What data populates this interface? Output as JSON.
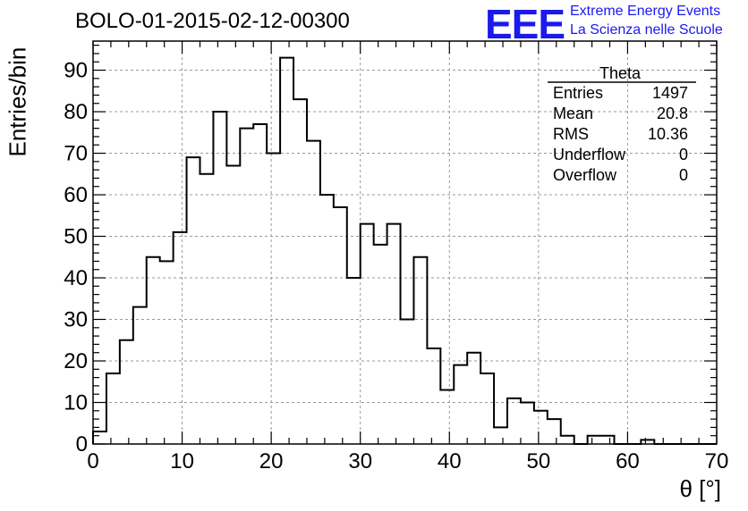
{
  "title": "BOLO-01-2015-02-12-00300",
  "logo": {
    "mark": "EEE",
    "line1": "Extreme Energy Events",
    "line2": "La Scienza nelle Scuole"
  },
  "colors": {
    "logo": "#1a1aee",
    "line": "#000000",
    "grid": "#999999"
  },
  "stats": {
    "name": "Theta",
    "rows": [
      {
        "label": "Entries",
        "value": "1497"
      },
      {
        "label": "Mean",
        "value": "20.8"
      },
      {
        "label": "RMS",
        "value": "10.36"
      },
      {
        "label": "Underflow",
        "value": "0"
      },
      {
        "label": "Overflow",
        "value": "0"
      }
    ]
  },
  "chart_data": {
    "type": "histogram",
    "xlabel": "θ [°]",
    "ylabel": "Entries/bin",
    "xlim": [
      0,
      70
    ],
    "ylim": [
      0,
      97
    ],
    "grid": true,
    "bin_width": 1.5,
    "bin_start": 0,
    "values": [
      3,
      17,
      25,
      33,
      45,
      44,
      51,
      69,
      65,
      80,
      67,
      76,
      77,
      70,
      93,
      83,
      73,
      60,
      57,
      40,
      53,
      48,
      53,
      30,
      45,
      23,
      13,
      19,
      22,
      17,
      4,
      11,
      10,
      8,
      6,
      2,
      0,
      2,
      2,
      0,
      0,
      1,
      0,
      0,
      0,
      0,
      0
    ],
    "xticks": [
      0,
      10,
      20,
      30,
      40,
      50,
      60,
      70
    ],
    "yticks": [
      0,
      10,
      20,
      30,
      40,
      50,
      60,
      70,
      80,
      90
    ]
  }
}
